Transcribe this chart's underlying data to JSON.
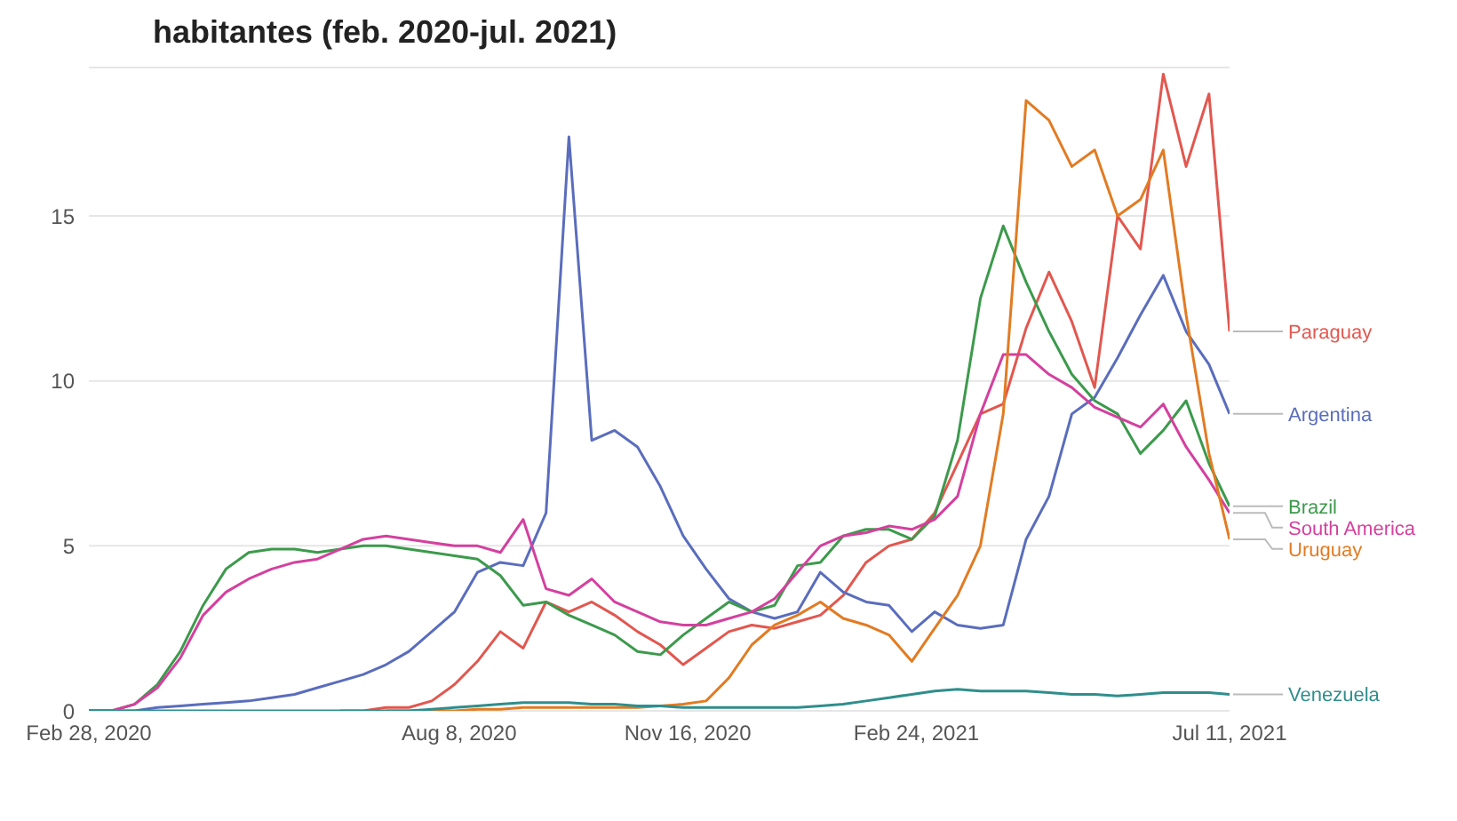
{
  "chart_data": {
    "type": "line",
    "title": "habitantes (feb. 2020-jul. 2021)",
    "x": [
      "2020-02-28",
      "2020-03-09",
      "2020-03-19",
      "2020-03-29",
      "2020-04-08",
      "2020-04-18",
      "2020-04-28",
      "2020-05-08",
      "2020-05-18",
      "2020-05-28",
      "2020-06-07",
      "2020-06-17",
      "2020-06-27",
      "2020-07-07",
      "2020-07-17",
      "2020-07-27",
      "2020-08-06",
      "2020-08-16",
      "2020-08-26",
      "2020-09-05",
      "2020-09-15",
      "2020-09-25",
      "2020-10-05",
      "2020-10-15",
      "2020-10-25",
      "2020-11-04",
      "2020-11-14",
      "2020-11-24",
      "2020-12-04",
      "2020-12-14",
      "2020-12-24",
      "2021-01-03",
      "2021-01-13",
      "2021-01-23",
      "2021-02-02",
      "2021-02-12",
      "2021-02-22",
      "2021-03-04",
      "2021-03-14",
      "2021-03-24",
      "2021-04-03",
      "2021-04-13",
      "2021-04-23",
      "2021-05-03",
      "2021-05-13",
      "2021-05-23",
      "2021-06-02",
      "2021-06-12",
      "2021-06-22",
      "2021-07-02",
      "2021-07-11"
    ],
    "series": [
      {
        "name": "Paraguay",
        "color": "#e2574f",
        "values": [
          null,
          null,
          null,
          null,
          null,
          null,
          null,
          null,
          null,
          null,
          null,
          0,
          0,
          0.1,
          0.1,
          0.3,
          0.8,
          1.5,
          2.4,
          1.9,
          3.3,
          3.0,
          3.3,
          2.9,
          2.4,
          2.0,
          1.4,
          1.9,
          2.4,
          2.6,
          2.5,
          2.7,
          2.9,
          3.5,
          4.5,
          5.0,
          5.2,
          6.0,
          7.5,
          9.0,
          9.3,
          11.6,
          13.3,
          11.8,
          9.8,
          15.0,
          14.0,
          19.3,
          16.5,
          18.7,
          11.5
        ]
      },
      {
        "name": "Argentina",
        "color": "#5a6dbd",
        "values": [
          0,
          0,
          0,
          0.1,
          0.15,
          0.2,
          0.25,
          0.3,
          0.4,
          0.5,
          0.7,
          0.9,
          1.1,
          1.4,
          1.8,
          2.4,
          3.0,
          4.2,
          4.5,
          4.4,
          6.0,
          17.4,
          8.2,
          8.5,
          8.0,
          6.8,
          5.3,
          4.3,
          3.4,
          3.0,
          2.8,
          3.0,
          4.2,
          3.6,
          3.3,
          3.2,
          2.4,
          3.0,
          2.6,
          2.5,
          2.6,
          5.2,
          6.5,
          9.0,
          9.5,
          10.7,
          12.0,
          13.2,
          11.5,
          10.5,
          9.0
        ]
      },
      {
        "name": "Brazil",
        "color": "#3c9a4c",
        "values": [
          0,
          0,
          0.2,
          0.8,
          1.8,
          3.2,
          4.3,
          4.8,
          4.9,
          4.9,
          4.8,
          4.9,
          5.0,
          5.0,
          4.9,
          4.8,
          4.7,
          4.6,
          4.1,
          3.2,
          3.3,
          2.9,
          2.6,
          2.3,
          1.8,
          1.7,
          2.3,
          2.8,
          3.3,
          3.0,
          3.2,
          4.4,
          4.5,
          5.3,
          5.5,
          5.5,
          5.2,
          5.9,
          8.2,
          12.5,
          14.7,
          13.0,
          11.5,
          10.2,
          9.4,
          9.0,
          7.8,
          8.5,
          9.4,
          7.5,
          6.2
        ]
      },
      {
        "name": "South America",
        "color": "#d4409e",
        "values": [
          0,
          0,
          0.2,
          0.7,
          1.6,
          2.9,
          3.6,
          4.0,
          4.3,
          4.5,
          4.6,
          4.9,
          5.2,
          5.3,
          5.2,
          5.1,
          5.0,
          5.0,
          4.8,
          5.8,
          3.7,
          3.5,
          4.0,
          3.3,
          3.0,
          2.7,
          2.6,
          2.6,
          2.8,
          3.0,
          3.4,
          4.2,
          5.0,
          5.3,
          5.4,
          5.6,
          5.5,
          5.8,
          6.5,
          9.0,
          10.8,
          10.8,
          10.2,
          9.8,
          9.2,
          8.9,
          8.6,
          9.3,
          8.0,
          7.0,
          6.0
        ]
      },
      {
        "name": "Uruguay",
        "color": "#e27b22",
        "values": [
          null,
          null,
          null,
          null,
          null,
          null,
          null,
          null,
          null,
          null,
          null,
          null,
          null,
          0,
          0,
          0,
          0,
          0.05,
          0.05,
          0.1,
          0.1,
          0.1,
          0.1,
          0.1,
          0.1,
          0.15,
          0.2,
          0.3,
          1.0,
          2.0,
          2.6,
          2.9,
          3.3,
          2.8,
          2.6,
          2.3,
          1.5,
          2.5,
          3.5,
          5.0,
          9.0,
          18.5,
          17.9,
          16.5,
          17.0,
          15.0,
          15.5,
          17.0,
          12.0,
          7.8,
          5.2
        ]
      },
      {
        "name": "Venezuela",
        "color": "#2f8e8c",
        "values": [
          0,
          0,
          0,
          0,
          0,
          0,
          0,
          0,
          0,
          0,
          0,
          0,
          0,
          0,
          0,
          0.05,
          0.1,
          0.15,
          0.2,
          0.25,
          0.25,
          0.25,
          0.2,
          0.2,
          0.15,
          0.15,
          0.1,
          0.1,
          0.1,
          0.1,
          0.1,
          0.1,
          0.15,
          0.2,
          0.3,
          0.4,
          0.5,
          0.6,
          0.65,
          0.6,
          0.6,
          0.6,
          0.55,
          0.5,
          0.5,
          0.45,
          0.5,
          0.55,
          0.55,
          0.55,
          0.5
        ]
      }
    ],
    "xlim": [
      "2020-02-28",
      "2021-07-11"
    ],
    "xticks": [
      {
        "value": "2020-02-28",
        "label": "Feb 28, 2020"
      },
      {
        "value": "2020-08-08",
        "label": "Aug 8, 2020"
      },
      {
        "value": "2020-11-16",
        "label": "Nov 16, 2020"
      },
      {
        "value": "2021-02-24",
        "label": "Feb 24, 2021"
      },
      {
        "value": "2021-07-11",
        "label": "Jul 11, 2021"
      }
    ],
    "ylim": [
      0,
      19.5
    ],
    "yticks": [
      0,
      5,
      10,
      15
    ],
    "grid": "y",
    "legend": false,
    "marker": "none",
    "line_style": "solid"
  }
}
